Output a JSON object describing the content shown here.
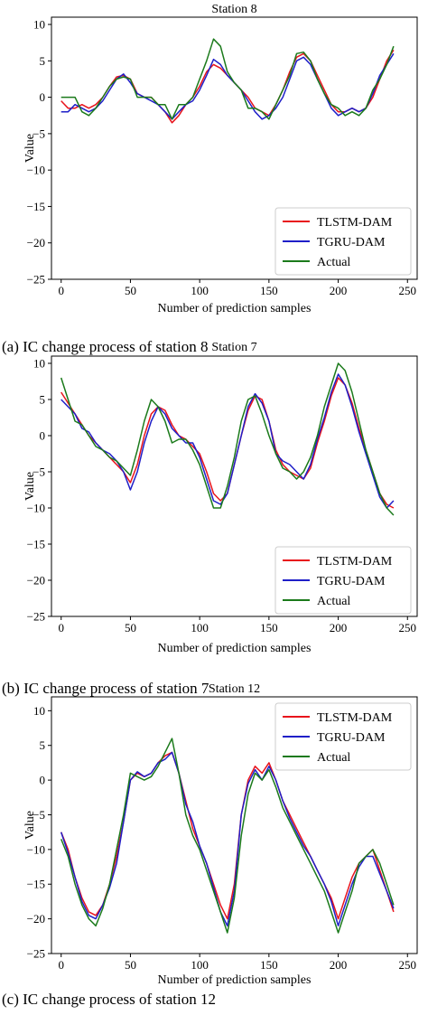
{
  "captions": [
    "(a)  IC change process of station 8",
    "(b)  IC change process of station 7",
    "(c)  IC change process of station 12"
  ],
  "chart_data": [
    {
      "type": "line",
      "title": "Station 8",
      "xlabel": "Number of prediction samples",
      "ylabel": "Value",
      "xlim": [
        -7,
        257
      ],
      "ylim": [
        -25,
        11
      ],
      "xticks": [
        0,
        50,
        100,
        150,
        200,
        250
      ],
      "yticks": [
        10,
        5,
        0,
        -5,
        -10,
        -15,
        -20,
        -25
      ],
      "grid": false,
      "legend": "bottom-right",
      "series": [
        {
          "name": "TLSTM-DAM",
          "color": "#e8141c",
          "x": [
            0,
            5,
            10,
            15,
            20,
            25,
            30,
            35,
            40,
            45,
            50,
            55,
            60,
            65,
            70,
            75,
            80,
            85,
            90,
            95,
            100,
            105,
            110,
            115,
            120,
            125,
            130,
            135,
            140,
            145,
            150,
            155,
            160,
            165,
            170,
            175,
            180,
            185,
            190,
            195,
            200,
            205,
            210,
            215,
            220,
            225,
            230,
            235,
            240
          ],
          "y": [
            -0.5,
            -1.5,
            -1.5,
            -1,
            -1.5,
            -1,
            0,
            1.5,
            2.8,
            3,
            2.5,
            0.5,
            0,
            0,
            -1,
            -2,
            -3.5,
            -2.5,
            -1,
            0,
            1.5,
            3.5,
            4.5,
            4,
            3,
            2,
            1,
            0,
            -1.5,
            -2,
            -2.5,
            -1,
            1,
            3.5,
            5.5,
            6,
            5,
            3,
            1,
            -1,
            -2,
            -2,
            -1.5,
            -2,
            -1.5,
            0,
            2.5,
            5,
            6.5
          ]
        },
        {
          "name": "TGRU-DAM",
          "color": "#1f1fc8",
          "x": [
            0,
            5,
            10,
            15,
            20,
            25,
            30,
            35,
            40,
            45,
            50,
            55,
            60,
            65,
            70,
            75,
            80,
            85,
            90,
            95,
            100,
            105,
            110,
            115,
            120,
            125,
            130,
            135,
            140,
            145,
            150,
            155,
            160,
            165,
            170,
            175,
            180,
            185,
            190,
            195,
            200,
            205,
            210,
            215,
            220,
            225,
            230,
            235,
            240
          ],
          "y": [
            -2,
            -2,
            -1,
            -1.5,
            -2,
            -1.5,
            -0.5,
            1,
            2.5,
            3.2,
            2,
            0.5,
            0,
            -0.5,
            -1,
            -2,
            -3,
            -2,
            -1,
            -0.5,
            1,
            3,
            5.2,
            4.5,
            3,
            2,
            1,
            -0.5,
            -2,
            -3,
            -2.5,
            -1.5,
            0,
            2.5,
            5,
            5.5,
            4.5,
            2.5,
            0.5,
            -1.5,
            -2.5,
            -2,
            -1.5,
            -2,
            -1.5,
            0.5,
            3,
            4.5,
            6
          ]
        },
        {
          "name": "Actual",
          "color": "#1b7a1b",
          "x": [
            0,
            5,
            10,
            15,
            20,
            25,
            30,
            35,
            40,
            45,
            50,
            55,
            60,
            65,
            70,
            75,
            80,
            85,
            90,
            95,
            100,
            105,
            110,
            115,
            120,
            125,
            130,
            135,
            140,
            145,
            150,
            155,
            160,
            165,
            170,
            175,
            180,
            185,
            190,
            195,
            200,
            205,
            210,
            215,
            220,
            225,
            230,
            235,
            240
          ],
          "y": [
            0,
            0,
            0,
            -2,
            -2.5,
            -1.5,
            0,
            1.5,
            2.5,
            2.8,
            2.5,
            0,
            0,
            0,
            -1,
            -1,
            -3,
            -1,
            -1,
            0,
            2.5,
            5,
            8,
            7,
            3.5,
            2,
            1,
            -1.5,
            -1.5,
            -2,
            -3,
            -1,
            1,
            3,
            6,
            6.2,
            5,
            2.5,
            0.5,
            -1,
            -1.5,
            -2.5,
            -2,
            -2.5,
            -1.5,
            1,
            2.5,
            4.5,
            7
          ]
        }
      ]
    },
    {
      "type": "line",
      "title": "Station 7",
      "xlabel": "Number of prediction samples",
      "ylabel": "Value",
      "xlim": [
        -7,
        257
      ],
      "ylim": [
        -25,
        11
      ],
      "xticks": [
        0,
        50,
        100,
        150,
        200,
        250
      ],
      "yticks": [
        10,
        5,
        0,
        -5,
        -10,
        -15,
        -20,
        -25
      ],
      "grid": false,
      "legend": "bottom-right",
      "series": [
        {
          "name": "TLSTM-DAM",
          "color": "#e8141c",
          "x": [
            0,
            5,
            10,
            15,
            20,
            25,
            30,
            35,
            40,
            45,
            50,
            55,
            60,
            65,
            70,
            75,
            80,
            85,
            90,
            95,
            100,
            105,
            110,
            115,
            120,
            125,
            130,
            135,
            140,
            145,
            150,
            155,
            160,
            165,
            170,
            175,
            180,
            185,
            190,
            195,
            200,
            205,
            210,
            215,
            220,
            225,
            230,
            235,
            240
          ],
          "y": [
            6,
            4.5,
            3,
            1.5,
            0,
            -1,
            -2,
            -3,
            -4,
            -5,
            -6.5,
            -4,
            0,
            3,
            4,
            3.5,
            1.5,
            0,
            -0.5,
            -1.5,
            -2.5,
            -5,
            -8,
            -9,
            -8,
            -4,
            0,
            3.5,
            5.5,
            5,
            2,
            -2,
            -4,
            -5,
            -5.5,
            -6,
            -4.5,
            -1,
            2,
            5.5,
            8,
            7,
            4.5,
            1,
            -2,
            -5,
            -8,
            -9.5,
            -10
          ]
        },
        {
          "name": "TGRU-DAM",
          "color": "#1f1fc8",
          "x": [
            0,
            5,
            10,
            15,
            20,
            25,
            30,
            35,
            40,
            45,
            50,
            55,
            60,
            65,
            70,
            75,
            80,
            85,
            90,
            95,
            100,
            105,
            110,
            115,
            120,
            125,
            130,
            135,
            140,
            145,
            150,
            155,
            160,
            165,
            170,
            175,
            180,
            185,
            190,
            195,
            200,
            205,
            210,
            215,
            220,
            225,
            230,
            235,
            240
          ],
          "y": [
            5,
            4,
            3,
            1,
            0.5,
            -1,
            -2,
            -2.5,
            -3.5,
            -5,
            -7.5,
            -5,
            -1,
            2,
            4,
            3,
            1,
            0,
            -1,
            -1,
            -3,
            -6,
            -9,
            -9.5,
            -8,
            -4,
            0,
            4,
            5.8,
            4.5,
            2,
            -2.5,
            -3.5,
            -4,
            -5,
            -6,
            -4,
            -0.5,
            2.5,
            6,
            8.5,
            7,
            4,
            0.5,
            -2.5,
            -5.5,
            -8.5,
            -10,
            -9
          ]
        },
        {
          "name": "Actual",
          "color": "#1b7a1b",
          "x": [
            0,
            5,
            10,
            15,
            20,
            25,
            30,
            35,
            40,
            45,
            50,
            55,
            60,
            65,
            70,
            75,
            80,
            85,
            90,
            95,
            100,
            105,
            110,
            115,
            120,
            125,
            130,
            135,
            140,
            145,
            150,
            155,
            160,
            165,
            170,
            175,
            180,
            185,
            190,
            195,
            200,
            205,
            210,
            215,
            220,
            225,
            230,
            235,
            240
          ],
          "y": [
            8,
            5,
            2,
            1.5,
            0,
            -1.5,
            -2,
            -3,
            -3.5,
            -4.5,
            -5.5,
            -2,
            2,
            5,
            4,
            2,
            -1,
            -0.5,
            -0.5,
            -2,
            -4,
            -7,
            -10,
            -10,
            -7,
            -3,
            2,
            5,
            5.5,
            3,
            0,
            -2.5,
            -4.5,
            -5,
            -6,
            -5,
            -3,
            0,
            4,
            7,
            10,
            9,
            6,
            2,
            -2,
            -5,
            -8,
            -10,
            -11
          ]
        }
      ]
    },
    {
      "type": "line",
      "title": "Station 12",
      "xlabel": "Number of prediction samples",
      "ylabel": "Value",
      "xlim": [
        -7,
        257
      ],
      "ylim": [
        -25,
        12
      ],
      "xticks": [
        0,
        50,
        100,
        150,
        200,
        250
      ],
      "yticks": [
        10,
        5,
        0,
        -5,
        -10,
        -15,
        -20,
        -25
      ],
      "grid": false,
      "legend": "top-right",
      "series": [
        {
          "name": "TLSTM-DAM",
          "color": "#e8141c",
          "x": [
            0,
            5,
            10,
            15,
            20,
            25,
            30,
            35,
            40,
            45,
            50,
            55,
            60,
            65,
            70,
            75,
            80,
            85,
            90,
            95,
            100,
            105,
            110,
            115,
            120,
            125,
            130,
            135,
            140,
            145,
            150,
            155,
            160,
            165,
            170,
            175,
            180,
            185,
            190,
            195,
            200,
            205,
            210,
            215,
            220,
            225,
            230,
            235,
            240
          ],
          "y": [
            -7.5,
            -10,
            -14,
            -17,
            -19,
            -19.5,
            -18,
            -15,
            -11,
            -6,
            0,
            1,
            0.5,
            1,
            2.5,
            3.5,
            4,
            1,
            -3,
            -7,
            -9.5,
            -12,
            -15,
            -18,
            -20,
            -15,
            -5,
            0,
            2,
            1,
            2.5,
            0,
            -3,
            -5,
            -7,
            -9,
            -11,
            -13,
            -15,
            -17,
            -20,
            -17,
            -14,
            -12,
            -11,
            -10,
            -13,
            -16,
            -19
          ]
        },
        {
          "name": "TGRU-DAM",
          "color": "#1f1fc8",
          "x": [
            0,
            5,
            10,
            15,
            20,
            25,
            30,
            35,
            40,
            45,
            50,
            55,
            60,
            65,
            70,
            75,
            80,
            85,
            90,
            95,
            100,
            105,
            110,
            115,
            120,
            125,
            130,
            135,
            140,
            145,
            150,
            155,
            160,
            165,
            170,
            175,
            180,
            185,
            190,
            195,
            200,
            205,
            210,
            215,
            220,
            225,
            230,
            235,
            240
          ],
          "y": [
            -7.5,
            -10.5,
            -14,
            -17.5,
            -19.5,
            -20,
            -18,
            -15.5,
            -12,
            -6,
            0,
            1.2,
            0.5,
            1,
            2.5,
            3,
            4,
            1,
            -3.5,
            -6,
            -9.5,
            -12,
            -15.5,
            -19,
            -21,
            -16,
            -5,
            -0.5,
            1.5,
            0,
            2,
            0,
            -3,
            -5.5,
            -7.5,
            -9.5,
            -11,
            -13,
            -15,
            -17.5,
            -21,
            -18,
            -15,
            -12.5,
            -11,
            -11,
            -13.5,
            -16,
            -18.5
          ]
        },
        {
          "name": "Actual",
          "color": "#1b7a1b",
          "x": [
            0,
            5,
            10,
            15,
            20,
            25,
            30,
            35,
            40,
            45,
            50,
            55,
            60,
            65,
            70,
            75,
            80,
            85,
            90,
            95,
            100,
            105,
            110,
            115,
            120,
            125,
            130,
            135,
            140,
            145,
            150,
            155,
            160,
            165,
            170,
            175,
            180,
            185,
            190,
            195,
            200,
            205,
            210,
            215,
            220,
            225,
            230,
            235,
            240
          ],
          "y": [
            -8.5,
            -11,
            -15,
            -18,
            -20,
            -21,
            -18.5,
            -15,
            -10,
            -5,
            1,
            0.5,
            0,
            0.5,
            2,
            4,
            6,
            1,
            -5,
            -8,
            -10,
            -13,
            -16,
            -19,
            -22,
            -17,
            -8,
            -2,
            1,
            0,
            1.5,
            -1,
            -4,
            -6,
            -8,
            -10,
            -12,
            -14,
            -16,
            -19,
            -22,
            -19,
            -16,
            -12,
            -11,
            -10,
            -12,
            -15,
            -18
          ]
        }
      ]
    }
  ]
}
